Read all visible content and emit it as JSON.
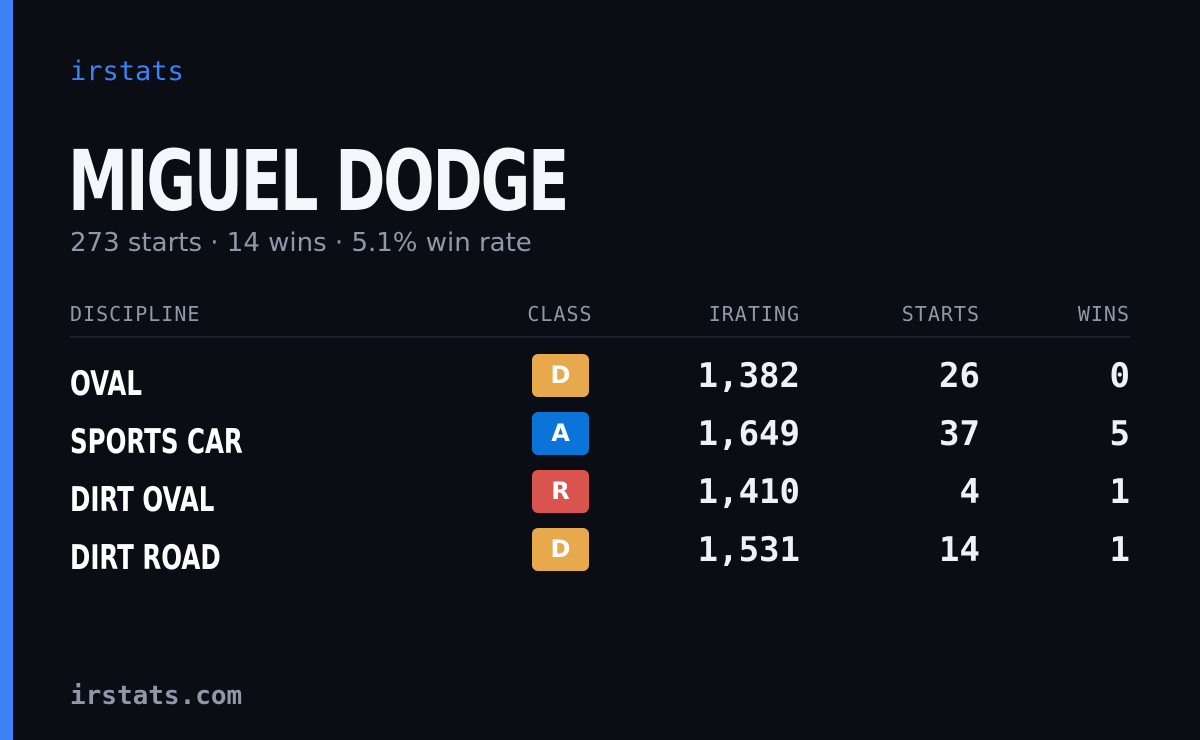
{
  "brand": "irstats",
  "player": {
    "name": "MIGUEL DODGE",
    "summary": "273 starts · 14 wins · 5.1% win rate"
  },
  "table": {
    "headers": {
      "discipline": "DISCIPLINE",
      "class": "CLASS",
      "irating": "IRATING",
      "starts": "STARTS",
      "wins": "WINS"
    },
    "rows": [
      {
        "discipline": "OVAL",
        "class": "D",
        "class_color": "#e8a94c",
        "irating": "1,382",
        "starts": "26",
        "wins": "0"
      },
      {
        "discipline": "SPORTS CAR",
        "class": "A",
        "class_color": "#0a74d9",
        "irating": "1,649",
        "starts": "37",
        "wins": "5"
      },
      {
        "discipline": "DIRT OVAL",
        "class": "R",
        "class_color": "#d9534f",
        "irating": "1,410",
        "starts": "4",
        "wins": "1"
      },
      {
        "discipline": "DIRT ROAD",
        "class": "D",
        "class_color": "#e8a94c",
        "irating": "1,531",
        "starts": "14",
        "wins": "1"
      }
    ]
  },
  "footer": {
    "url": "irstats.com"
  },
  "colors": {
    "accent": "#3b82f6",
    "background": "#0a0d14",
    "muted_text": "#8f98ab"
  }
}
